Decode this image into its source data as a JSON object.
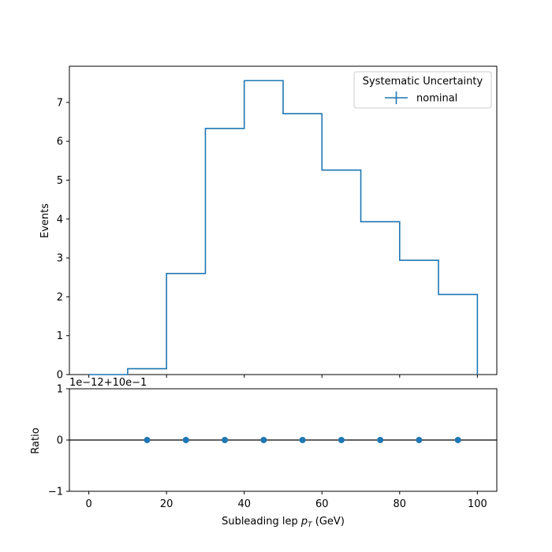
{
  "chart_data": [
    {
      "type": "line",
      "drawstyle": "step",
      "xlabel": "Subleading lep",
      "xlabel_math": "p",
      "xlabel_sub": "T",
      "xlabel_unit": " (GeV)",
      "ylabel": "Events",
      "xlim": [
        -5,
        105
      ],
      "ylim": [
        0,
        7.93
      ],
      "xticks": [
        0,
        20,
        40,
        60,
        80,
        100
      ],
      "yticks": [
        0,
        1,
        2,
        3,
        4,
        5,
        6,
        7
      ],
      "bin_edges": [
        0,
        10,
        20,
        30,
        40,
        50,
        60,
        70,
        80,
        90,
        100
      ],
      "series": [
        {
          "name": "nominal",
          "color": "#1f77b4",
          "values": [
            0.0,
            0.15,
            2.6,
            6.33,
            7.56,
            6.71,
            5.26,
            3.93,
            2.94,
            2.06
          ]
        }
      ],
      "legend": {
        "title": "Systematic Uncertainty",
        "position": "top-right"
      }
    },
    {
      "type": "scatter",
      "ylabel": "Ratio",
      "offset_label": "1e−12+10e−1",
      "xlim": [
        -5,
        105
      ],
      "ylim": [
        -1,
        1
      ],
      "yticks": [
        -1,
        0,
        1
      ],
      "reference_line": 0,
      "x": [
        15,
        25,
        35,
        45,
        55,
        65,
        75,
        85,
        95
      ],
      "y": [
        0,
        0,
        0,
        0,
        0,
        0,
        0,
        0,
        0
      ],
      "color": "#1f77b4"
    }
  ]
}
